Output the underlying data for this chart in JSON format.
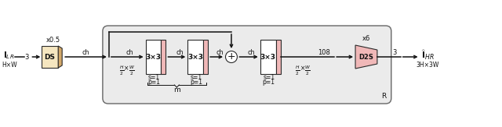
{
  "fig_bg": "#ffffff",
  "box_outline": "#2a2a2a",
  "ds_fill": "#f5e6c0",
  "ds_side_fill": "#d4a96a",
  "conv_fill": "#ffffff",
  "conv_side_fill": "#f0b8b8",
  "d2s_fill": "#f0b8b8",
  "sum_fill": "#ffffff",
  "R_box_fill": "#ebebeb",
  "R_box_edge": "#666666",
  "text_color": "#111111",
  "ds_label": "DS",
  "d2s_label": "D2S",
  "conv_label": "3×3",
  "x05_label": "x0.5",
  "x6_label": "x6",
  "ch_label": "ch",
  "n108_label": "108",
  "m_label": "m",
  "R_label": "R",
  "hxw_label": "H×W",
  "thrHxW_label": "3H×3W"
}
